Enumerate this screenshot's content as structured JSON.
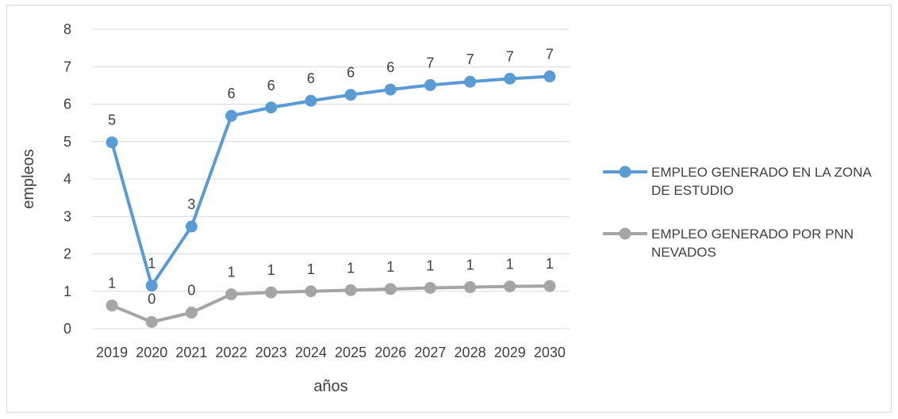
{
  "chart_data": {
    "type": "line",
    "title": "",
    "xlabel": "años",
    "ylabel": "empleos",
    "ylim": [
      0,
      8
    ],
    "yticks": [
      0,
      1,
      2,
      3,
      4,
      5,
      6,
      7,
      8
    ],
    "grid": "horizontal",
    "legend_position": "right",
    "categories": [
      "2019",
      "2020",
      "2021",
      "2022",
      "2023",
      "2024",
      "2025",
      "2026",
      "2027",
      "2028",
      "2029",
      "2030"
    ],
    "series": [
      {
        "name": "EMPLEO GENERADO EN LA ZONA DE ESTUDIO",
        "color": "#5b9bd5",
        "values": [
          4.98,
          1.15,
          2.73,
          5.69,
          5.91,
          6.09,
          6.25,
          6.39,
          6.51,
          6.6,
          6.68,
          6.74
        ],
        "labels": [
          "5",
          "1",
          "3",
          "6",
          "6",
          "6",
          "6",
          "6",
          "7",
          "7",
          "7",
          "7"
        ]
      },
      {
        "name": "EMPLEO GENERADO POR PNN NEVADOS",
        "color": "#a5a5a5",
        "values": [
          0.62,
          0.18,
          0.43,
          0.92,
          0.97,
          1.0,
          1.03,
          1.06,
          1.09,
          1.11,
          1.13,
          1.14
        ],
        "labels": [
          "1",
          "0",
          "0",
          "1",
          "1",
          "1",
          "1",
          "1",
          "1",
          "1",
          "1",
          "1"
        ]
      }
    ]
  }
}
